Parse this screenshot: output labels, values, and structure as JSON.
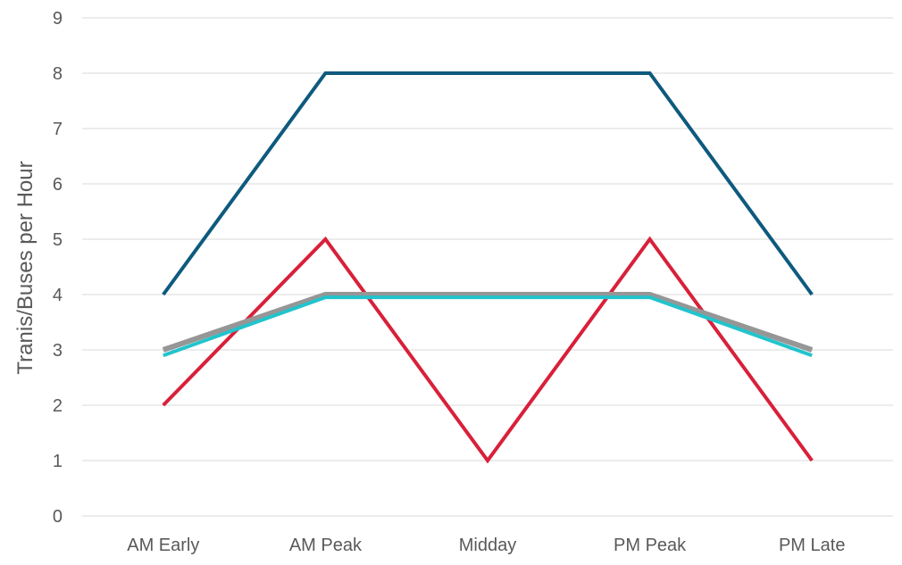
{
  "chart_data": {
    "type": "line",
    "title": "",
    "xlabel": "",
    "ylabel": "Tranis/Buses per Hour",
    "categories": [
      "AM Early",
      "AM Peak",
      "Midday",
      "PM Peak",
      "PM Late"
    ],
    "ylim": [
      0,
      9
    ],
    "yticks": [
      0,
      1,
      2,
      3,
      4,
      5,
      6,
      7,
      8,
      9
    ],
    "grid": true,
    "legend": "none",
    "series": [
      {
        "color": "#0e5a7e",
        "values": [
          4,
          8,
          8,
          8,
          4
        ]
      },
      {
        "color": "#d8203a",
        "values": [
          2,
          5,
          1,
          5,
          1
        ]
      },
      {
        "color": "#969696",
        "values": [
          3,
          4,
          4,
          4,
          3
        ]
      },
      {
        "color": "#22c4cc",
        "values": [
          2.9,
          3.95,
          3.95,
          3.95,
          2.9
        ]
      }
    ]
  }
}
